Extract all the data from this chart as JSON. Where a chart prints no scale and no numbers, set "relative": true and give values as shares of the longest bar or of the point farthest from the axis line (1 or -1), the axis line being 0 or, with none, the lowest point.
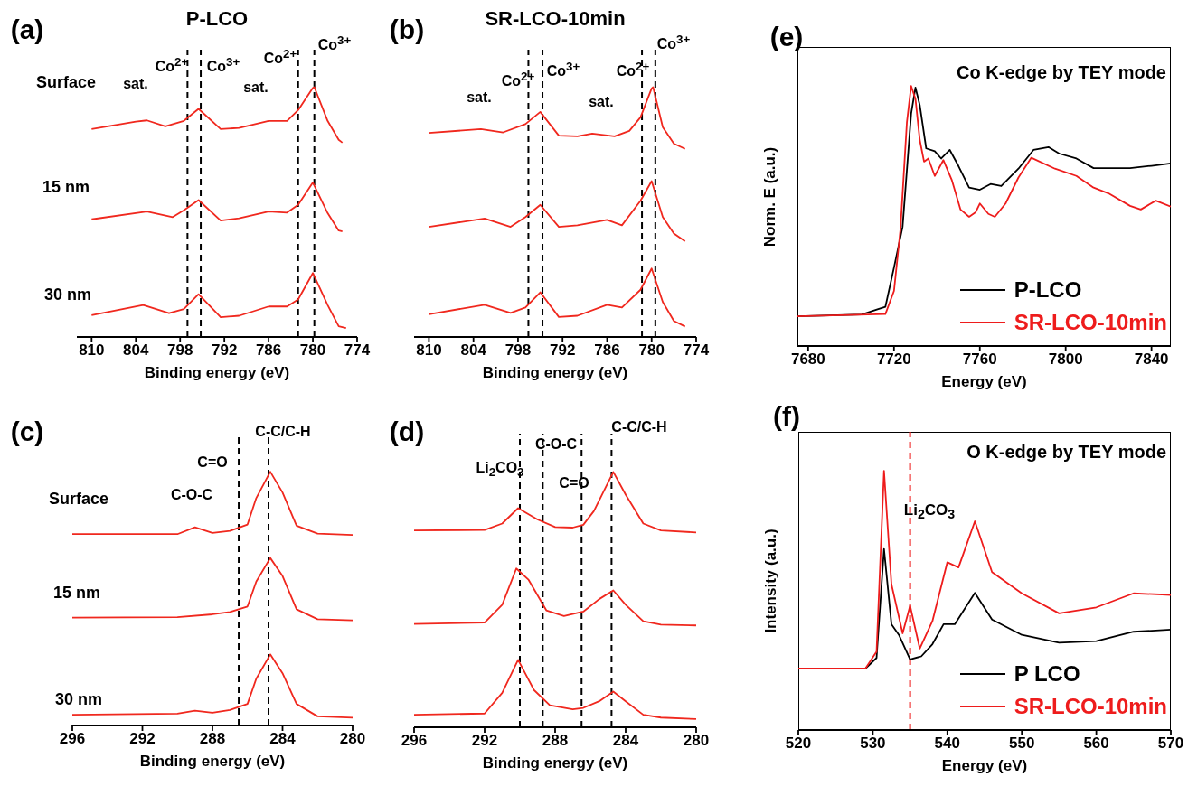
{
  "chart_data": [
    {
      "type": "line",
      "title": "P-LCO",
      "xlabel": "Binding energy (eV)",
      "relative": true,
      "marker": "none",
      "legend": false,
      "xlim": [
        812,
        774
      ],
      "xticks": [
        810,
        804,
        798,
        792,
        786,
        780,
        774
      ],
      "series": [
        {
          "color": "#f0281e",
          "x": [
            810,
            804,
            802.5,
            800,
            797.5,
            795.5,
            792.5,
            790,
            786,
            783.5,
            782,
            780,
            779.8,
            778,
            776.5,
            776
          ],
          "values": [
            0.832,
            0.862,
            0.867,
            0.843,
            0.865,
            0.913,
            0.832,
            0.837,
            0.865,
            0.865,
            0.908,
            0.997,
            1.0,
            0.865,
            0.789,
            0.778
          ]
        },
        {
          "color": "#f0281e",
          "x": [
            810,
            802.5,
            799,
            797.5,
            795.5,
            792.5,
            790,
            786,
            783.5,
            782,
            780,
            778,
            776.5,
            776
          ],
          "values": [
            0.471,
            0.502,
            0.48,
            0.507,
            0.548,
            0.466,
            0.475,
            0.502,
            0.498,
            0.529,
            0.618,
            0.496,
            0.426,
            0.423
          ]
        },
        {
          "color": "#f0281e",
          "x": [
            810,
            803,
            799.5,
            797.5,
            795.5,
            792.5,
            790,
            786,
            783.5,
            782,
            780,
            778,
            776.5,
            775.5
          ],
          "values": [
            0.087,
            0.128,
            0.095,
            0.112,
            0.171,
            0.079,
            0.085,
            0.122,
            0.122,
            0.15,
            0.256,
            0.128,
            0.043,
            0.036
          ]
        }
      ],
      "ref_lines": [
        {
          "axis": "x",
          "value": 797,
          "color": "#000000",
          "line_style": "dashed"
        },
        {
          "axis": "x",
          "value": 795.2,
          "color": "#000000",
          "line_style": "dashed"
        },
        {
          "axis": "x",
          "value": 782,
          "color": "#000000",
          "line_style": "dashed"
        },
        {
          "axis": "x",
          "value": 779.8,
          "color": "#000000",
          "line_style": "dashed"
        }
      ],
      "annotations": [
        "(a)",
        "Surface",
        "15 nm",
        "30 nm",
        "sat.",
        "Co$^{2+}$",
        "Co$^{3+}$",
        "sat.",
        "Co$^{2+}$",
        "Co$^{3+}$"
      ]
    },
    {
      "type": "line",
      "title": "SR-LCO-10min",
      "xlabel": "Binding energy (eV)",
      "relative": true,
      "marker": "none",
      "legend": false,
      "xlim": [
        812,
        774
      ],
      "xticks": [
        810,
        804,
        798,
        792,
        786,
        780,
        774
      ],
      "series": [
        {
          "color": "#f0281e",
          "x": [
            810,
            803,
            800,
            797,
            795,
            792.5,
            790,
            788,
            785,
            783,
            781.5,
            780,
            779.8,
            778.5,
            777,
            775.5
          ],
          "values": [
            0.817,
            0.832,
            0.819,
            0.852,
            0.901,
            0.806,
            0.803,
            0.814,
            0.803,
            0.825,
            0.879,
            0.995,
            1.0,
            0.84,
            0.774,
            0.753
          ]
        },
        {
          "color": "#f0281e",
          "x": [
            810,
            802.5,
            799,
            797,
            795,
            792.5,
            790,
            786,
            784,
            781.5,
            780,
            778.5,
            777,
            775.5
          ],
          "values": [
            0.441,
            0.474,
            0.441,
            0.48,
            0.529,
            0.441,
            0.447,
            0.469,
            0.447,
            0.545,
            0.624,
            0.48,
            0.414,
            0.383
          ]
        },
        {
          "color": "#f0281e",
          "x": [
            810,
            802.5,
            799,
            797,
            795,
            792.5,
            790,
            786,
            784,
            781.5,
            780,
            778.5,
            777,
            775.5
          ],
          "values": [
            0.091,
            0.129,
            0.096,
            0.118,
            0.179,
            0.08,
            0.085,
            0.129,
            0.118,
            0.189,
            0.274,
            0.14,
            0.064,
            0.042
          ]
        }
      ],
      "ref_lines": [
        {
          "axis": "x",
          "value": 796.6,
          "color": "#000000",
          "line_style": "dashed"
        },
        {
          "axis": "x",
          "value": 794.7,
          "color": "#000000",
          "line_style": "dashed"
        },
        {
          "axis": "x",
          "value": 781.3,
          "color": "#000000",
          "line_style": "dashed"
        },
        {
          "axis": "x",
          "value": 779.5,
          "color": "#000000",
          "line_style": "dashed"
        }
      ],
      "annotations": [
        "(b)",
        "sat.",
        "Co$^{2+}$",
        "Co$^{3+}$",
        "sat.",
        "Co$^{2+}$",
        "Co$^{3+}$"
      ]
    },
    {
      "type": "line",
      "xlabel": "Binding energy (eV)",
      "relative": true,
      "marker": "none",
      "legend": false,
      "xlim": [
        296,
        280
      ],
      "xticks": [
        296,
        292,
        288,
        284,
        280
      ],
      "series": [
        {
          "color": "#f0281e",
          "x": [
            296,
            290,
            289,
            288,
            287,
            286,
            285.5,
            284.7,
            284,
            283.2,
            282,
            280
          ],
          "values": [
            0.754,
            0.754,
            0.781,
            0.759,
            0.767,
            0.792,
            0.896,
            1.0,
            0.918,
            0.787,
            0.756,
            0.751
          ]
        },
        {
          "color": "#f0281e",
          "x": [
            296,
            290,
            288,
            287,
            286,
            285.5,
            284.7,
            284,
            283.2,
            282,
            280
          ],
          "values": [
            0.425,
            0.427,
            0.438,
            0.447,
            0.469,
            0.567,
            0.66,
            0.589,
            0.458,
            0.419,
            0.414
          ]
        },
        {
          "color": "#f0281e",
          "x": [
            296,
            290,
            289,
            288,
            287,
            286,
            285.5,
            284.7,
            284,
            283.2,
            282,
            280
          ],
          "values": [
            0.042,
            0.047,
            0.058,
            0.05,
            0.061,
            0.085,
            0.184,
            0.28,
            0.206,
            0.085,
            0.036,
            0.031
          ]
        }
      ],
      "ref_lines": [
        {
          "axis": "x",
          "value": 286.5,
          "color": "#000000",
          "line_style": "dashed"
        },
        {
          "axis": "x",
          "value": 284.8,
          "color": "#000000",
          "line_style": "dashed"
        }
      ],
      "annotations": [
        "(c)",
        "Surface",
        "15 nm",
        "30 nm",
        "C-O-C",
        "C=O",
        "C-C/C-H"
      ]
    },
    {
      "type": "line",
      "xlabel": "Binding energy (eV)",
      "relative": true,
      "marker": "none",
      "legend": false,
      "xlim": [
        296,
        280
      ],
      "xticks": [
        296,
        292,
        288,
        284,
        280
      ],
      "series": [
        {
          "color": "#f0281e",
          "x": [
            296,
            292,
            291,
            290.1,
            289,
            288,
            287,
            286.4,
            285.8,
            284.7,
            284,
            283,
            282,
            280
          ],
          "values": [
            0.771,
            0.773,
            0.798,
            0.858,
            0.814,
            0.784,
            0.782,
            0.793,
            0.847,
            1.0,
            0.911,
            0.798,
            0.771,
            0.763
          ]
        },
        {
          "color": "#f0281e",
          "x": [
            296,
            292,
            291,
            290.2,
            289.5,
            288.5,
            287.5,
            286.4,
            285.5,
            284.7,
            284,
            283,
            282,
            280
          ],
          "values": [
            0.405,
            0.41,
            0.48,
            0.622,
            0.577,
            0.458,
            0.436,
            0.453,
            0.502,
            0.536,
            0.48,
            0.415,
            0.402,
            0.399
          ]
        },
        {
          "color": "#f0281e",
          "x": [
            296,
            292,
            291,
            290.1,
            289.2,
            288.3,
            287,
            286.4,
            285.5,
            284.7,
            284,
            283,
            282,
            280
          ],
          "values": [
            0.049,
            0.054,
            0.135,
            0.264,
            0.146,
            0.086,
            0.07,
            0.076,
            0.102,
            0.14,
            0.102,
            0.049,
            0.038,
            0.032
          ]
        }
      ],
      "ref_lines": [
        {
          "axis": "x",
          "value": 290,
          "color": "#000000",
          "line_style": "dashed"
        },
        {
          "axis": "x",
          "value": 288.7,
          "color": "#000000",
          "line_style": "dashed"
        },
        {
          "axis": "x",
          "value": 286.5,
          "color": "#000000",
          "line_style": "dashed"
        },
        {
          "axis": "x",
          "value": 284.8,
          "color": "#000000",
          "line_style": "dashed"
        }
      ],
      "annotations": [
        "(d)",
        "Li$_{2}$CO$_{3}$",
        "C-O-C",
        "C=O",
        "C-C/C-H"
      ]
    },
    {
      "type": "line",
      "xlabel": "Energy (eV)",
      "ylabel": "Norm. E (a.u.)",
      "relative": true,
      "marker": "none",
      "legend": "bottom right",
      "xlim": [
        7675,
        7849
      ],
      "xticks": [
        7680,
        7720,
        7760,
        7800,
        7840
      ],
      "series": [
        {
          "name": "P-LCO",
          "color": "#000000",
          "x": [
            7675,
            7705,
            7712,
            7716,
            7720,
            7724,
            7728,
            7730,
            7732,
            7735,
            7739,
            7742,
            7746,
            7750,
            7755,
            7760,
            7765,
            7770,
            7778,
            7785,
            7792,
            7797,
            7805,
            7813,
            7830,
            7840,
            7849
          ],
          "values": [
            0.114,
            0.121,
            0.14,
            0.151,
            0.302,
            0.458,
            0.894,
            0.994,
            0.927,
            0.76,
            0.749,
            0.721,
            0.754,
            0.693,
            0.609,
            0.601,
            0.623,
            0.615,
            0.682,
            0.754,
            0.765,
            0.74,
            0.721,
            0.684,
            0.684,
            0.693,
            0.702
          ]
        },
        {
          "name": "SR-LCO-10min",
          "color": "#ee1c1c",
          "x": [
            7675,
            7716,
            7720,
            7723,
            7726,
            7728,
            7730,
            7732,
            7734,
            7736,
            7739,
            7743,
            7747,
            7751,
            7755,
            7758,
            7760,
            7764,
            7767,
            7772,
            7778,
            7784,
            7795,
            7805,
            7813,
            7820,
            7830,
            7835,
            7842,
            7849
          ],
          "values": [
            0.114,
            0.123,
            0.212,
            0.447,
            0.86,
            1.0,
            0.95,
            0.793,
            0.709,
            0.721,
            0.654,
            0.715,
            0.637,
            0.525,
            0.497,
            0.514,
            0.548,
            0.508,
            0.497,
            0.548,
            0.648,
            0.724,
            0.682,
            0.654,
            0.609,
            0.587,
            0.539,
            0.525,
            0.559,
            0.536
          ]
        }
      ],
      "annotations": [
        "(e)",
        "Co K-edge by TEY mode"
      ]
    },
    {
      "type": "line",
      "xlabel": "Energy (eV)",
      "ylabel": "Intensity (a.u.)",
      "relative": true,
      "marker": "none",
      "legend": "bottom right",
      "xlim": [
        520,
        570
      ],
      "xticks": [
        520,
        530,
        540,
        550,
        560,
        570
      ],
      "series": [
        {
          "name": "P LCO",
          "color": "#000000",
          "x": [
            520,
            529,
            530.5,
            531.5,
            532.5,
            533.5,
            535,
            536.5,
            538,
            539.5,
            541,
            543.7,
            546,
            550,
            555,
            560,
            565,
            570
          ],
          "values": [
            0.237,
            0.237,
            0.278,
            0.698,
            0.408,
            0.367,
            0.272,
            0.284,
            0.331,
            0.408,
            0.408,
            0.529,
            0.426,
            0.367,
            0.337,
            0.343,
            0.379,
            0.387
          ]
        },
        {
          "name": "SR-LCO-10min",
          "color": "#ee1c1c",
          "x": [
            520,
            529,
            530.5,
            531.5,
            532.5,
            534,
            535,
            536.3,
            538,
            540,
            541.5,
            543.7,
            546,
            550,
            555,
            560,
            565,
            570
          ],
          "values": [
            0.237,
            0.237,
            0.302,
            1.0,
            0.562,
            0.373,
            0.479,
            0.314,
            0.42,
            0.647,
            0.627,
            0.805,
            0.609,
            0.527,
            0.45,
            0.473,
            0.527,
            0.521
          ]
        }
      ],
      "ref_lines": [
        {
          "axis": "x",
          "value": 535,
          "color": "#ee1c1c",
          "line_style": "dashed"
        }
      ],
      "annotations": [
        "(f)",
        "O K-edge by TEY mode",
        "Li$_{2}$CO$_{3}$"
      ]
    }
  ]
}
